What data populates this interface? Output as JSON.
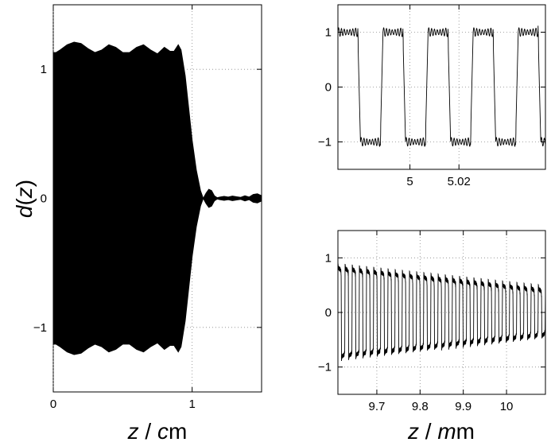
{
  "chart_data": [
    {
      "id": "main",
      "type": "area",
      "xlabel": {
        "var": "z",
        "sep": " / ",
        "unit_italic": "c",
        "unit_rest": "m"
      },
      "ylabel": {
        "func": "d",
        "open": "(",
        "var": "z",
        "close": ")"
      },
      "xlim": [
        0,
        1.5
      ],
      "ylim": [
        -1.5,
        1.5
      ],
      "xticks": [
        0,
        1
      ],
      "yticks": [
        -1,
        0,
        1
      ],
      "grid": "dotted",
      "series": [
        {
          "envelope_x": [
            0,
            0.02,
            0.05,
            0.1,
            0.15,
            0.2,
            0.25,
            0.3,
            0.35,
            0.4,
            0.45,
            0.5,
            0.55,
            0.6,
            0.65,
            0.7,
            0.75,
            0.8,
            0.84,
            0.87,
            0.9,
            0.92,
            0.95,
            0.98,
            1.0,
            1.03,
            1.06,
            1.08
          ],
          "envelope_y": [
            1.13,
            1.13,
            1.15,
            1.19,
            1.21,
            1.2,
            1.16,
            1.13,
            1.15,
            1.19,
            1.17,
            1.13,
            1.13,
            1.17,
            1.19,
            1.15,
            1.12,
            1.17,
            1.14,
            1.14,
            1.19,
            1.15,
            0.95,
            0.65,
            0.45,
            0.22,
            0.06,
            0.0
          ],
          "tail_x": [
            1.08,
            1.1,
            1.12,
            1.14,
            1.16,
            1.18,
            1.2,
            1.23,
            1.26,
            1.29,
            1.32,
            1.35,
            1.38,
            1.41,
            1.44,
            1.47,
            1.5
          ],
          "tail_y": [
            0.0,
            0.04,
            0.07,
            0.06,
            0.02,
            0.005,
            0.01,
            0.015,
            0.01,
            0.018,
            0.012,
            0.008,
            0.02,
            0.01,
            0.03,
            0.035,
            0.02
          ]
        }
      ]
    },
    {
      "id": "inset-top",
      "type": "line",
      "xlabel": "",
      "ylabel": "",
      "xlim": [
        4.9706,
        5.0553
      ],
      "ylim": [
        -1.5,
        1.5
      ],
      "xticks": [
        5,
        5.02
      ],
      "xticklabels": [
        "5",
        "5.02"
      ],
      "yticks": [
        -1,
        0,
        1
      ],
      "grid": "dotted",
      "series": [
        {
          "wave": "square",
          "period": 0.0184,
          "phase_start": 4.9706,
          "amplitude": 1.0,
          "ripple": 0.07
        }
      ]
    },
    {
      "id": "inset-bottom",
      "type": "line",
      "xlabel": {
        "var": "z",
        "sep": " / ",
        "unit_italic": "m",
        "unit_rest": "m"
      },
      "ylabel": "",
      "xlim": [
        9.61,
        10.09
      ],
      "ylim": [
        -1.5,
        1.5
      ],
      "xticks": [
        9.7,
        9.8,
        9.9,
        10.0
      ],
      "xticklabels": [
        "9.7",
        "9.8",
        "9.9",
        "10"
      ],
      "yticks": [
        -1,
        0,
        1
      ],
      "grid": "dotted",
      "series": [
        {
          "wave": "square",
          "cycles": 29,
          "amplitude_start": 0.8,
          "amplitude_end": 0.4,
          "spike": 0.12
        }
      ]
    }
  ]
}
